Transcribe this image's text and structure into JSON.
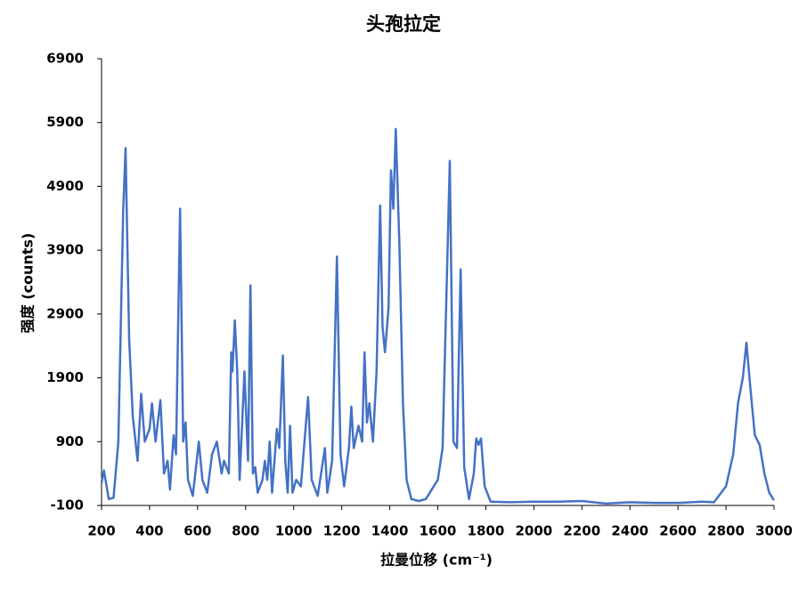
{
  "chart_data": {
    "type": "line",
    "title": "头孢拉定",
    "xlabel": "拉曼位移 (cm⁻¹)",
    "ylabel": "强度 (counts)",
    "x": [
      200,
      210,
      230,
      250,
      270,
      290,
      300,
      315,
      330,
      350,
      365,
      380,
      400,
      410,
      425,
      445,
      460,
      475,
      485,
      500,
      510,
      527,
      540,
      550,
      560,
      580,
      605,
      620,
      640,
      660,
      680,
      700,
      710,
      730,
      740,
      745,
      755,
      765,
      775,
      795,
      810,
      820,
      830,
      840,
      850,
      870,
      880,
      890,
      900,
      910,
      930,
      940,
      955,
      965,
      975,
      985,
      995,
      1010,
      1030,
      1060,
      1075,
      1100,
      1130,
      1140,
      1160,
      1180,
      1195,
      1210,
      1230,
      1240,
      1250,
      1270,
      1285,
      1295,
      1305,
      1315,
      1330,
      1345,
      1360,
      1370,
      1380,
      1395,
      1405,
      1415,
      1425,
      1440,
      1455,
      1470,
      1490,
      1520,
      1550,
      1600,
      1620,
      1650,
      1665,
      1680,
      1695,
      1710,
      1730,
      1750,
      1760,
      1770,
      1780,
      1795,
      1820,
      1900,
      2000,
      2100,
      2200,
      2300,
      2400,
      2500,
      2600,
      2700,
      2750,
      2800,
      2830,
      2850,
      2870,
      2885,
      2900,
      2920,
      2940,
      2960,
      2980,
      3000
    ],
    "series": [
      {
        "name": "头孢拉定",
        "color": "#4472c4",
        "values": [
          250,
          450,
          0,
          20,
          900,
          4500,
          5500,
          2500,
          1300,
          600,
          1650,
          900,
          1100,
          1500,
          900,
          1550,
          400,
          600,
          150,
          1000,
          700,
          4550,
          900,
          1200,
          300,
          50,
          900,
          300,
          100,
          700,
          900,
          400,
          600,
          400,
          2300,
          2000,
          2800,
          2000,
          300,
          2000,
          600,
          3350,
          400,
          500,
          100,
          300,
          600,
          300,
          900,
          100,
          1100,
          800,
          2250,
          600,
          100,
          1150,
          100,
          300,
          200,
          1600,
          300,
          50,
          800,
          100,
          600,
          3800,
          700,
          200,
          800,
          1450,
          800,
          1150,
          900,
          2300,
          1200,
          1500,
          900,
          2000,
          4600,
          2700,
          2300,
          3000,
          5150,
          4550,
          5800,
          4000,
          1500,
          300,
          0,
          -30,
          0,
          300,
          800,
          5300,
          900,
          800,
          3600,
          500,
          0,
          400,
          950,
          850,
          950,
          200,
          -40,
          -50,
          -40,
          -40,
          -30,
          -70,
          -50,
          -60,
          -60,
          -40,
          -50,
          200,
          700,
          1500,
          1900,
          2450,
          1800,
          1000,
          850,
          400,
          100,
          -20
        ]
      }
    ],
    "xlim": [
      200,
      3000
    ],
    "xticks": [
      200,
      400,
      600,
      800,
      1000,
      1200,
      1400,
      1600,
      1800,
      2000,
      2200,
      2400,
      2600,
      2800,
      3000
    ],
    "ylim": [
      -100,
      6900
    ],
    "yticks": [
      -100,
      900,
      1900,
      2900,
      3900,
      4900,
      5900,
      6900
    ],
    "grid": false
  }
}
